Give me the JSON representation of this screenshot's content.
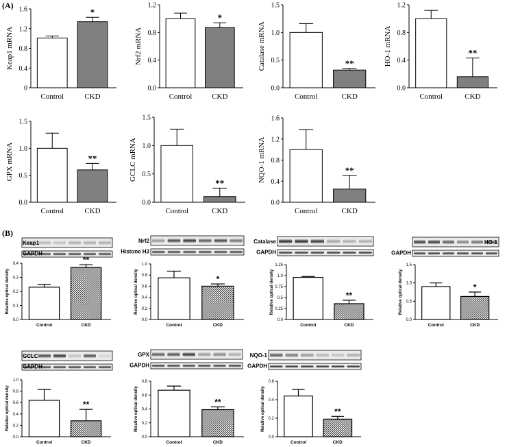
{
  "panel_a_label": "(A)",
  "panel_b_label": "(B)",
  "colors": {
    "bar_control": "#ffffff",
    "bar_ckd": "#808080",
    "axis": "#000000"
  },
  "chart_data": [
    {
      "id": "keap1",
      "type": "bar",
      "group": "A",
      "ylabel": "Keap1 mRNA",
      "categories": [
        "Control",
        "CKD"
      ],
      "values": [
        1.01,
        1.34
      ],
      "errors": [
        0.04,
        0.09
      ],
      "ylim": [
        0,
        1.6
      ],
      "yticks": [
        "0",
        "0.4",
        "0.8",
        "1.2",
        "1.6"
      ],
      "sig": [
        "",
        "*"
      ]
    },
    {
      "id": "nrf2",
      "type": "bar",
      "group": "A",
      "ylabel": "Nrf2 mRNA",
      "categories": [
        "Control",
        "CKD"
      ],
      "values": [
        1.0,
        0.87
      ],
      "errors": [
        0.08,
        0.07
      ],
      "ylim": [
        0,
        1.2
      ],
      "yticks": [
        "0.0",
        "0.4",
        "0.8",
        "1.2"
      ],
      "sig": [
        "",
        "*"
      ]
    },
    {
      "id": "catalase",
      "type": "bar",
      "group": "A",
      "ylabel": "Catalase mRNA",
      "categories": [
        "Control",
        "CKD"
      ],
      "values": [
        1.0,
        0.32
      ],
      "errors": [
        0.16,
        0.03
      ],
      "ylim": [
        0,
        1.5
      ],
      "yticks": [
        "0.0",
        "0.5",
        "1.0",
        "1.5"
      ],
      "sig": [
        "",
        "**"
      ]
    },
    {
      "id": "ho1",
      "type": "bar",
      "group": "A",
      "ylabel": "HO-1 mRNA",
      "categories": [
        "Control",
        "CKD"
      ],
      "values": [
        1.0,
        0.16
      ],
      "errors": [
        0.12,
        0.27
      ],
      "ylim": [
        0,
        1.2
      ],
      "yticks": [
        "0.0",
        "0.4",
        "0.8",
        "1.2"
      ],
      "sig": [
        "",
        "**"
      ]
    },
    {
      "id": "gpx",
      "type": "bar",
      "group": "A",
      "ylabel": "GPX mRNA",
      "categories": [
        "Control",
        "CKD"
      ],
      "values": [
        1.0,
        0.6
      ],
      "errors": [
        0.28,
        0.12
      ],
      "ylim": [
        0,
        1.5
      ],
      "yticks": [
        "0.0",
        "0.5",
        "1.0",
        "1.5"
      ],
      "sig": [
        "",
        "**"
      ]
    },
    {
      "id": "gclc",
      "type": "bar",
      "group": "A",
      "ylabel": "GCLC mRNA",
      "categories": [
        "Control",
        "CKD"
      ],
      "values": [
        1.0,
        0.1
      ],
      "errors": [
        0.29,
        0.15
      ],
      "ylim": [
        0,
        1.5
      ],
      "yticks": [
        "0.0",
        "0.5",
        "1.0",
        "1.5"
      ],
      "sig": [
        "",
        "**"
      ]
    },
    {
      "id": "nqo1",
      "type": "bar",
      "group": "A",
      "ylabel": "NQO-1 mRNA",
      "categories": [
        "Control",
        "CKD"
      ],
      "values": [
        1.0,
        0.25
      ],
      "errors": [
        0.38,
        0.26
      ],
      "ylim": [
        0,
        1.6
      ],
      "yticks": [
        "0.0",
        "0.4",
        "0.8",
        "1.2",
        "1.6"
      ],
      "sig": [
        "",
        "**"
      ]
    },
    {
      "id": "keap1_wb",
      "type": "bar",
      "group": "B",
      "ylabel": "Relative optical density",
      "categories": [
        "Control",
        "CKD"
      ],
      "values": [
        0.23,
        0.37
      ],
      "errors": [
        0.02,
        0.02
      ],
      "ylim": [
        0,
        0.4
      ],
      "yticks": [
        "0.0",
        "0.1",
        "0.2",
        "0.3",
        "0.4"
      ],
      "sig": [
        "",
        "**"
      ],
      "blots": [
        "Keap1",
        "GAPDH"
      ]
    },
    {
      "id": "nrf2_wb",
      "type": "bar",
      "group": "B",
      "ylabel": "Relative optical density",
      "categories": [
        "Control",
        "CKD"
      ],
      "values": [
        0.75,
        0.6
      ],
      "errors": [
        0.12,
        0.04
      ],
      "ylim": [
        0,
        1.0
      ],
      "yticks": [
        "0.0",
        "0.2",
        "0.4",
        "0.6",
        "0.8",
        "1.0"
      ],
      "sig": [
        "",
        "*"
      ],
      "blots": [
        "Nrf2",
        "Histone H3"
      ]
    },
    {
      "id": "catalase_wb",
      "type": "bar",
      "group": "B",
      "ylabel": "Relative optical density",
      "categories": [
        "Control",
        "CKD"
      ],
      "values": [
        0.96,
        0.36
      ],
      "errors": [
        0.02,
        0.08
      ],
      "ylim": [
        0,
        1.25
      ],
      "yticks": [
        "0.0",
        "0.25",
        "0.5",
        "0.75",
        "1.0",
        "1.25"
      ],
      "sig": [
        "",
        "**"
      ],
      "blots": [
        "Catalase",
        "GAPDH"
      ]
    },
    {
      "id": "ho1_wb",
      "type": "bar",
      "group": "B",
      "ylabel": "Relative optical density",
      "categories": [
        "Control",
        "CKD"
      ],
      "values": [
        0.9,
        0.63
      ],
      "errors": [
        0.1,
        0.12
      ],
      "ylim": [
        0,
        1.5
      ],
      "yticks": [
        "0.0",
        "0.5",
        "1.0",
        "1.5"
      ],
      "sig": [
        "",
        "*"
      ],
      "blots": [
        "HO-1",
        "GAPDH"
      ]
    },
    {
      "id": "gclc_wb",
      "type": "bar",
      "group": "B",
      "ylabel": "Relative optical density",
      "categories": [
        "Control",
        "CKD"
      ],
      "values": [
        0.64,
        0.28
      ],
      "errors": [
        0.19,
        0.2
      ],
      "ylim": [
        0,
        1.0
      ],
      "yticks": [
        "0.0",
        "0.2",
        "0.4",
        "0.6",
        "0.8",
        "1.0"
      ],
      "sig": [
        "",
        "**"
      ],
      "blots": [
        "GCLC",
        "GAPDH"
      ]
    },
    {
      "id": "gpx_wb",
      "type": "bar",
      "group": "B",
      "ylabel": "Relative optical density",
      "categories": [
        "Control",
        "CKD"
      ],
      "values": [
        0.67,
        0.39
      ],
      "errors": [
        0.06,
        0.04
      ],
      "ylim": [
        0,
        0.8
      ],
      "yticks": [
        "0.0",
        "0.2",
        "0.4",
        "0.6",
        "0.8"
      ],
      "sig": [
        "",
        "**"
      ],
      "blots": [
        "GPX",
        "GAPDH"
      ]
    },
    {
      "id": "nqo1_wb",
      "type": "bar",
      "group": "B",
      "ylabel": "Relative optical density",
      "categories": [
        "Control",
        "CKD"
      ],
      "values": [
        0.44,
        0.19
      ],
      "errors": [
        0.07,
        0.03
      ],
      "ylim": [
        0,
        0.6
      ],
      "yticks": [
        "0.0",
        "0.2",
        "0.4",
        "0.6"
      ],
      "sig": [
        "",
        "**"
      ],
      "blots": [
        "NQO-1",
        "GAPDH"
      ]
    }
  ]
}
